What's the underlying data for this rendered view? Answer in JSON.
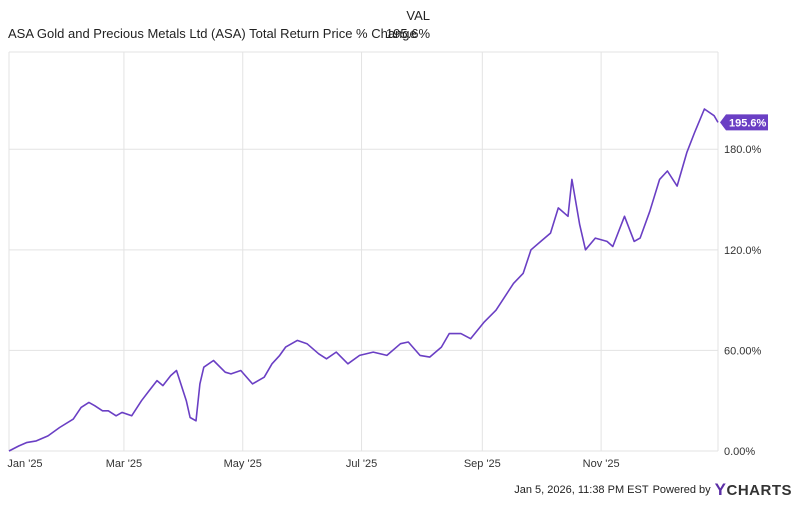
{
  "legend": {
    "header": "VAL",
    "series_label": "ASA Gold and Precious Metals Ltd (ASA) Total Return Price % Change",
    "series_value": "195.6%"
  },
  "footer": {
    "timestamp": "Jan 5, 2026, 11:38 PM EST",
    "powered_by": "Powered by",
    "brand_mark": "Y",
    "brand_text": "CHARTS"
  },
  "colors": {
    "line": "#6a3fc4",
    "badge": "#6a3fc4",
    "grid": "#e3e3e3"
  },
  "chart_data": {
    "type": "line",
    "title": "",
    "xlabel": "",
    "ylabel": "",
    "x_ticks": [
      "Jan '25",
      "Mar '25",
      "May '25",
      "Jul '25",
      "Sep '25",
      "Nov '25"
    ],
    "x_tick_dates": [
      "2025-01-01",
      "2025-03-01",
      "2025-05-01",
      "2025-07-01",
      "2025-09-01",
      "2025-11-01"
    ],
    "y_ticks": [
      "0.00%",
      "60.00%",
      "120.0%",
      "180.0%"
    ],
    "y_tick_values": [
      0,
      60,
      120,
      180
    ],
    "ylim": [
      0,
      238
    ],
    "xlim": [
      "2025-01-01",
      "2025-12-31"
    ],
    "grid": true,
    "last_value_label": "195.6%",
    "series": [
      {
        "name": "ASA Gold and Precious Metals Ltd (ASA) Total Return Price % Change",
        "x": [
          "2025-01-01",
          "2025-01-06",
          "2025-01-10",
          "2025-01-15",
          "2025-01-21",
          "2025-01-27",
          "2025-02-03",
          "2025-02-07",
          "2025-02-11",
          "2025-02-14",
          "2025-02-18",
          "2025-02-21",
          "2025-02-25",
          "2025-02-28",
          "2025-03-05",
          "2025-03-10",
          "2025-03-14",
          "2025-03-18",
          "2025-03-21",
          "2025-03-25",
          "2025-03-28",
          "2025-04-02",
          "2025-04-04",
          "2025-04-07",
          "2025-04-09",
          "2025-04-11",
          "2025-04-16",
          "2025-04-22",
          "2025-04-25",
          "2025-04-30",
          "2025-05-06",
          "2025-05-12",
          "2025-05-16",
          "2025-05-20",
          "2025-05-23",
          "2025-05-29",
          "2025-06-03",
          "2025-06-09",
          "2025-06-13",
          "2025-06-18",
          "2025-06-24",
          "2025-06-30",
          "2025-07-07",
          "2025-07-14",
          "2025-07-21",
          "2025-07-25",
          "2025-07-31",
          "2025-08-05",
          "2025-08-11",
          "2025-08-15",
          "2025-08-21",
          "2025-08-26",
          "2025-09-02",
          "2025-09-08",
          "2025-09-12",
          "2025-09-17",
          "2025-09-22",
          "2025-09-26",
          "2025-10-01",
          "2025-10-06",
          "2025-10-10",
          "2025-10-15",
          "2025-10-17",
          "2025-10-21",
          "2025-10-24",
          "2025-10-29",
          "2025-11-04",
          "2025-11-07",
          "2025-11-13",
          "2025-11-18",
          "2025-11-21",
          "2025-11-26",
          "2025-12-01",
          "2025-12-05",
          "2025-12-10",
          "2025-12-15",
          "2025-12-19",
          "2025-12-24",
          "2025-12-29",
          "2025-12-31"
        ],
        "y": [
          0,
          3,
          5,
          6,
          9,
          14,
          19,
          26,
          29,
          27,
          24,
          24,
          21,
          23,
          21,
          30,
          36,
          42,
          39,
          45,
          48,
          30,
          20,
          18,
          40,
          50,
          54,
          47,
          46,
          48,
          40,
          44,
          52,
          57,
          62,
          66,
          64,
          58,
          55,
          59,
          52,
          57,
          59,
          57,
          64,
          65,
          57,
          56,
          62,
          70,
          70,
          67,
          77,
          84,
          91,
          100,
          106,
          120,
          125,
          130,
          145,
          140,
          162,
          135,
          120,
          127,
          125,
          122,
          140,
          125,
          127,
          143,
          162,
          167,
          158,
          178,
          190,
          204,
          200,
          196
        ]
      }
    ]
  }
}
